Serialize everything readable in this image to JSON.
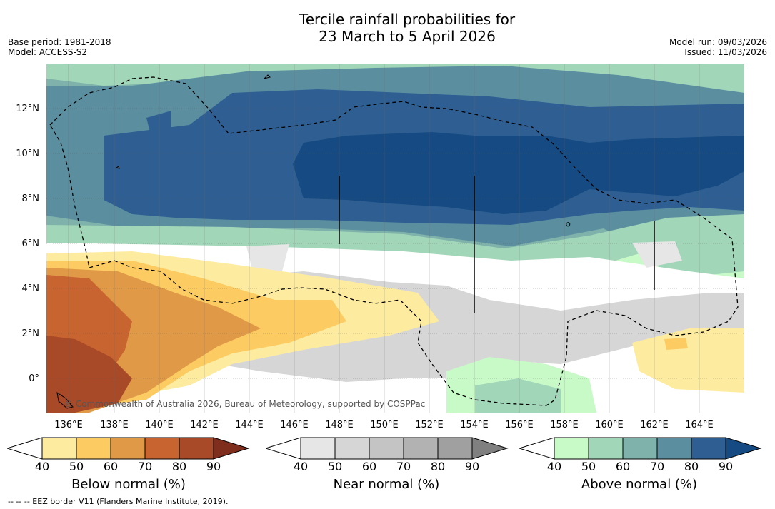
{
  "title_line1": "Tercile rainfall probabilities for",
  "title_line2": "23 March to 5 April 2026",
  "base_period": "Base period: 1981-2018",
  "model": "Model: ACCESS-S2",
  "model_run": "Model run: 09/03/2026",
  "issued": "Issued: 11/03/2026",
  "copyright": "© Commonwealth of Australia 2026, Bureau of Meteorology, supported by COSPPac",
  "lat_labels": [
    "12°N",
    "10°N",
    "8°N",
    "6°N",
    "4°N",
    "2°N",
    "0°"
  ],
  "lon_labels": [
    "136°E",
    "138°E",
    "140°E",
    "142°E",
    "144°E",
    "146°E",
    "148°E",
    "150°E",
    "152°E",
    "154°E",
    "156°E",
    "158°E",
    "160°E",
    "162°E",
    "164°E"
  ],
  "colorbars": {
    "below": {
      "title": "Below normal (%)",
      "ticks": [
        "40",
        "50",
        "60",
        "70",
        "80",
        "90"
      ],
      "colors": [
        "#ffffff",
        "#fdeca0",
        "#fccc63",
        "#e09a47",
        "#c8642f",
        "#a84a28",
        "#7f2d1d"
      ]
    },
    "near": {
      "title": "Near normal (%)",
      "ticks": [
        "40",
        "50",
        "60",
        "70",
        "80",
        "90"
      ],
      "colors": [
        "#ffffff",
        "#e6e6e6",
        "#d6d6d6",
        "#c4c4c4",
        "#b2b2b2",
        "#a0a0a0",
        "#808080"
      ]
    },
    "above": {
      "title": "Above normal (%)",
      "ticks": [
        "40",
        "50",
        "60",
        "70",
        "80",
        "90"
      ],
      "colors": [
        "#ffffff",
        "#c8fac8",
        "#a2d6b8",
        "#7eb2aa",
        "#5b8fa0",
        "#2f5f92",
        "#154a82"
      ]
    }
  },
  "footnote": "--  --  -- EEZ border V11 (Flanders Marine Institute, 2019)."
}
